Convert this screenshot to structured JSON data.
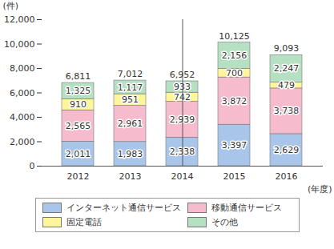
{
  "chart_data": {
    "type": "bar",
    "stacked": true,
    "data_labels": true,
    "legend": "bottom",
    "grid": false,
    "y_label": "(件)",
    "x_label": "(年度)",
    "categories": [
      "2012",
      "2013",
      "2014",
      "2015",
      "2016"
    ],
    "ylim": [
      0,
      12000
    ],
    "yticks": [
      0,
      {
        "value": 2000,
        "label": "2,000"
      },
      {
        "value": 4000,
        "label": "4,000"
      },
      {
        "value": 6000,
        "label": "6,000"
      },
      {
        "value": 8000,
        "label": "8,000"
      },
      {
        "value": 10000,
        "label": "10,000"
      },
      {
        "value": 12000,
        "label": "12,000"
      }
    ],
    "series": [
      {
        "name": "インターネット通信サービス",
        "color": "#a9c6ea",
        "values": [
          2011,
          1983,
          2338,
          3397,
          2629
        ],
        "value_labels": [
          "2,011",
          "1,983",
          "2,338",
          "3,397",
          "2,629"
        ]
      },
      {
        "name": "移動通信サービス",
        "color": "#f6bccd",
        "values": [
          2565,
          2961,
          2939,
          3872,
          3738
        ],
        "value_labels": [
          "2,565",
          "2,961",
          "2,939",
          "3,872",
          "3,738"
        ]
      },
      {
        "name": "固定電話",
        "color": "#fff59a",
        "values": [
          910,
          951,
          742,
          700,
          479
        ],
        "value_labels": [
          "910",
          "951",
          "742",
          "700",
          "479"
        ]
      },
      {
        "name": "その他",
        "color": "#b5e0c2",
        "values": [
          1325,
          1117,
          933,
          2156,
          2247
        ],
        "value_labels": [
          "1,325",
          "1,117",
          "933",
          "2,156",
          "2,247"
        ]
      }
    ],
    "totals": [
      6811,
      7012,
      6952,
      10125,
      9093
    ],
    "total_labels": [
      "6,811",
      "7,012",
      "6,952",
      "10,125",
      "9,093"
    ]
  }
}
